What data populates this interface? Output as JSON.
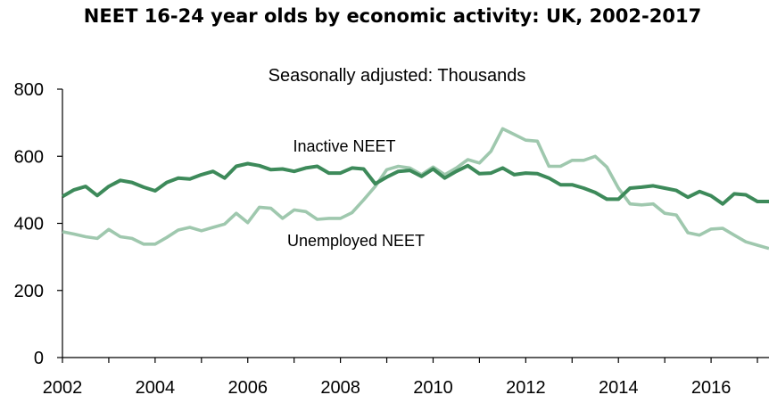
{
  "chart_data": {
    "type": "line",
    "title": "NEET 16-24 year olds by economic activity: UK, 2002-2017",
    "subtitle": "Seasonally adjusted: Thousands",
    "xlabel": "",
    "ylabel": "",
    "xlim": [
      2002,
      2017.25
    ],
    "ylim": [
      0,
      800
    ],
    "x_ticks": [
      "2002",
      "2004",
      "2006",
      "2008",
      "2010",
      "2012",
      "2014",
      "2016"
    ],
    "y_ticks": [
      "0",
      "200",
      "400",
      "600",
      "800"
    ],
    "grid": false,
    "legend": "none",
    "annotations": [
      "Inactive NEET",
      "Unemployed NEET"
    ],
    "series": [
      {
        "name": "Inactive NEET",
        "color": "#3d8a5a",
        "x": [
          2002,
          2002.25,
          2002.5,
          2002.75,
          2003,
          2003.25,
          2003.5,
          2003.75,
          2004,
          2004.25,
          2004.5,
          2004.75,
          2005,
          2005.25,
          2005.5,
          2005.75,
          2006,
          2006.25,
          2006.5,
          2006.75,
          2007,
          2007.25,
          2007.5,
          2007.75,
          2008,
          2008.25,
          2008.5,
          2008.75,
          2009,
          2009.25,
          2009.5,
          2009.75,
          2010,
          2010.25,
          2010.5,
          2010.75,
          2011,
          2011.25,
          2011.5,
          2011.75,
          2012,
          2012.25,
          2012.5,
          2012.75,
          2013,
          2013.25,
          2013.5,
          2013.75,
          2014,
          2014.25,
          2014.5,
          2014.75,
          2015,
          2015.25,
          2015.5,
          2015.75,
          2016,
          2016.25,
          2016.5,
          2016.75,
          2017,
          2017.25
        ],
        "values": [
          480,
          500,
          510,
          483,
          510,
          528,
          522,
          508,
          497,
          522,
          535,
          532,
          545,
          555,
          535,
          570,
          578,
          572,
          560,
          562,
          555,
          565,
          570,
          550,
          550,
          565,
          562,
          518,
          538,
          555,
          558,
          540,
          562,
          535,
          555,
          572,
          548,
          550,
          565,
          545,
          550,
          548,
          535,
          515,
          515,
          505,
          492,
          472,
          472,
          505,
          508,
          512,
          505,
          498,
          478,
          495,
          482,
          458,
          488,
          485,
          465,
          465
        ]
      },
      {
        "name": "Unemployed NEET",
        "color": "#9fc8ae",
        "x": [
          2002,
          2002.25,
          2002.5,
          2002.75,
          2003,
          2003.25,
          2003.5,
          2003.75,
          2004,
          2004.25,
          2004.5,
          2004.75,
          2005,
          2005.25,
          2005.5,
          2005.75,
          2006,
          2006.25,
          2006.5,
          2006.75,
          2007,
          2007.25,
          2007.5,
          2007.75,
          2008,
          2008.25,
          2008.5,
          2008.75,
          2009,
          2009.25,
          2009.5,
          2009.75,
          2010,
          2010.25,
          2010.5,
          2010.75,
          2011,
          2011.25,
          2011.5,
          2011.75,
          2012,
          2012.25,
          2012.5,
          2012.75,
          2013,
          2013.25,
          2013.5,
          2013.75,
          2014,
          2014.25,
          2014.5,
          2014.75,
          2015,
          2015.25,
          2015.5,
          2015.75,
          2016,
          2016.25,
          2016.5,
          2016.75,
          2017,
          2017.25
        ],
        "values": [
          375,
          368,
          360,
          355,
          382,
          360,
          355,
          338,
          338,
          358,
          380,
          388,
          378,
          388,
          398,
          430,
          402,
          448,
          445,
          415,
          440,
          435,
          412,
          415,
          415,
          432,
          470,
          510,
          560,
          570,
          565,
          545,
          568,
          545,
          565,
          590,
          580,
          615,
          682,
          665,
          648,
          645,
          570,
          570,
          588,
          588,
          600,
          568,
          505,
          458,
          455,
          458,
          430,
          425,
          372,
          365,
          383,
          385,
          365,
          345,
          335,
          325
        ]
      }
    ]
  }
}
